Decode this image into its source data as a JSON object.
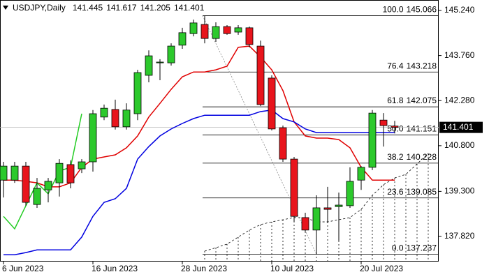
{
  "chart_data": {
    "type": "candlestick",
    "title": "USDJPY,Daily",
    "categories": [
      "6 Jun 2023",
      null,
      null,
      null,
      null,
      null,
      null,
      null,
      "16 Jun 2023",
      null,
      null,
      null,
      null,
      null,
      null,
      null,
      "28 Jun 2023",
      null,
      null,
      null,
      null,
      null,
      null,
      null,
      "10 Jul 2023",
      null,
      null,
      null,
      null,
      null,
      null,
      null,
      "20 Jul 2023",
      null,
      null,
      null,
      null,
      null,
      null
    ],
    "open": [
      139.67,
      139.67,
      140.13,
      138.87,
      139.35,
      139.58,
      140.18,
      140.04,
      140.27,
      141.74,
      141.99,
      141.42,
      141.85,
      143.11,
      143.52,
      143.52,
      144.1,
      144.48,
      144.78,
      144.32,
      144.71,
      144.53,
      144.67,
      144.07,
      143.02,
      141.39,
      140.36,
      138.44,
      138.03,
      138.76,
      138.8,
      138.83,
      139.67,
      140.09,
      141.64,
      141.445,
      null,
      null,
      null
    ],
    "high": [
      140.27,
      140.27,
      140.27,
      139.74,
      139.74,
      140.36,
      140.32,
      140.36,
      141.97,
      142.15,
      142.31,
      142.19,
      143.29,
      143.93,
      143.64,
      144.16,
      144.67,
      144.94,
      145.066,
      144.85,
      144.76,
      144.76,
      144.71,
      144.25,
      143.11,
      141.46,
      140.43,
      138.6,
      139.17,
      139.45,
      139.26,
      140.09,
      140.13,
      141.97,
      141.87,
      141.617,
      null,
      null,
      null
    ],
    "low": [
      139.1,
      139.58,
      138.83,
      138.76,
      138.94,
      139.13,
      139.4,
      139.9,
      139.95,
      141.64,
      141.33,
      141.33,
      141.64,
      142.88,
      142.95,
      143.43,
      143.98,
      144.39,
      144.16,
      144.21,
      144.44,
      144.44,
      144.03,
      142.1,
      141.3,
      140.27,
      138.3,
      137.98,
      137.237,
      138.26,
      137.68,
      138.76,
      139.35,
      140.0,
      140.77,
      141.205,
      null,
      null,
      null
    ],
    "close": [
      140.13,
      140.13,
      138.94,
      139.4,
      139.63,
      140.22,
      139.58,
      140.27,
      141.85,
      142.03,
      141.42,
      141.97,
      143.2,
      143.75,
      143.545,
      144.07,
      144.51,
      144.83,
      144.32,
      144.71,
      144.48,
      144.67,
      144.12,
      142.15,
      141.35,
      140.36,
      138.48,
      138.03,
      138.76,
      138.71,
      138.85,
      139.63,
      140.09,
      141.87,
      141.46,
      141.401,
      null,
      null,
      null
    ],
    "up_color": "#2cc92c",
    "down_color": "#e8141c",
    "overlays": [
      {
        "color": "#e00000",
        "values": [
          139.67,
          139.67,
          139.63,
          139.58,
          139.45,
          139.45,
          139.58,
          140.09,
          140.36,
          140.43,
          140.5,
          140.73,
          141.12,
          141.74,
          142.19,
          142.65,
          143.06,
          143.22,
          143.22,
          143.29,
          143.41,
          144.03,
          144.07,
          143.71,
          143.29,
          142.61,
          141.58,
          141.12,
          141.05,
          141.05,
          141.0,
          140.73,
          140.09,
          139.67,
          139.67,
          139.67,
          null,
          null,
          null
        ]
      },
      {
        "color": "#0000e0",
        "values": [
          137.22,
          137.22,
          137.29,
          137.38,
          137.38,
          137.38,
          137.38,
          137.8,
          138.48,
          138.94,
          139.06,
          139.4,
          140.36,
          140.77,
          141.12,
          141.35,
          141.53,
          141.69,
          141.8,
          141.8,
          141.8,
          141.8,
          141.8,
          141.92,
          141.97,
          141.69,
          141.58,
          141.35,
          141.23,
          141.23,
          141.23,
          141.23,
          141.23,
          141.23,
          141.23,
          141.23,
          null,
          null,
          null
        ]
      },
      {
        "color": "#22cc22",
        "values": [
          138.48,
          138.07,
          138.83,
          139.58,
          139.22,
          139.97,
          140.09,
          141.85,
          null,
          null,
          null,
          null,
          null,
          null,
          null,
          null,
          null,
          null,
          null,
          null,
          null,
          null,
          null,
          null,
          null,
          null,
          null,
          null,
          null,
          null,
          null,
          null,
          null,
          null,
          null,
          null,
          null,
          null,
          null
        ]
      }
    ],
    "cloud": {
      "color": "#000000",
      "values": [
        null,
        null,
        null,
        null,
        null,
        null,
        null,
        null,
        null,
        null,
        null,
        null,
        null,
        null,
        null,
        null,
        null,
        null,
        137.34,
        137.45,
        137.57,
        137.8,
        138.03,
        138.21,
        138.3,
        138.37,
        138.44,
        138.44,
        138.3,
        138.3,
        138.37,
        138.44,
        138.71,
        139.17,
        139.52,
        139.74,
        139.86,
        140.2,
        140.55
      ]
    },
    "fibonacci": {
      "start_index": 18,
      "end_index": 28,
      "color": "#000000",
      "levels": [
        {
          "ratio": "100.0",
          "price": 145.066
        },
        {
          "ratio": "76.4",
          "price": 143.218
        },
        {
          "ratio": "61.8",
          "price": 142.075
        },
        {
          "ratio": "50.0",
          "price": 141.151
        },
        {
          "ratio": "38.2",
          "price": 140.228
        },
        {
          "ratio": "23.6",
          "price": 139.085
        },
        {
          "ratio": "0.0",
          "price": 137.237
        }
      ]
    },
    "ylim": [
      136.996,
      145.583
    ],
    "yticks": [
      {
        "value": 145.24,
        "label": "145.240"
      },
      {
        "value": 143.76,
        "label": "143.760"
      },
      {
        "value": 142.28,
        "label": "142.280"
      },
      {
        "value": 140.8,
        "label": "140.800"
      },
      {
        "value": 139.3,
        "label": "139.300"
      },
      {
        "value": 137.82,
        "label": "137.820"
      }
    ]
  }
}
